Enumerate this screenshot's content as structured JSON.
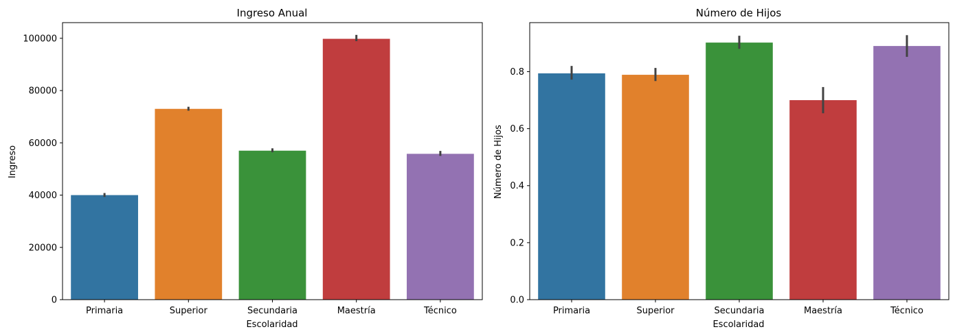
{
  "chart_data": [
    {
      "type": "bar",
      "title": "Ingreso Anual",
      "xlabel": "Escolaridad",
      "ylabel": "Ingreso",
      "categories": [
        "Primaria",
        "Superior",
        "Secundaria",
        "Maestría",
        "Técnico"
      ],
      "values": [
        40000,
        73000,
        57000,
        99800,
        55800
      ],
      "error_low": [
        39300,
        72300,
        56400,
        98900,
        55000
      ],
      "error_high": [
        40800,
        73800,
        57900,
        101300,
        56900
      ],
      "yticks": [
        0,
        20000,
        40000,
        60000,
        80000,
        100000
      ],
      "ytick_labels": [
        "0",
        "20000",
        "40000",
        "60000",
        "80000",
        "100000"
      ],
      "ylim": [
        0,
        105990
      ],
      "colors": [
        "#3274a1",
        "#e1812c",
        "#3a923a",
        "#c03d3e",
        "#9372b2"
      ],
      "grid": false
    },
    {
      "type": "bar",
      "title": "Número de Hijos",
      "xlabel": "Escolaridad",
      "ylabel": "Número de Hijos",
      "categories": [
        "Primaria",
        "Superior",
        "Secundaria",
        "Maestría",
        "Técnico"
      ],
      "values": [
        0.794,
        0.789,
        0.902,
        0.7,
        0.89
      ],
      "error_low": [
        0.772,
        0.767,
        0.88,
        0.654,
        0.852
      ],
      "error_high": [
        0.82,
        0.813,
        0.926,
        0.746,
        0.928
      ],
      "yticks": [
        0.0,
        0.2,
        0.4,
        0.6,
        0.8
      ],
      "ytick_labels": [
        "0.0",
        "0.2",
        "0.4",
        "0.6",
        "0.8"
      ],
      "ylim": [
        0,
        0.972
      ],
      "colors": [
        "#3274a1",
        "#e1812c",
        "#3a923a",
        "#c03d3e",
        "#9372b2"
      ],
      "grid": false
    }
  ]
}
